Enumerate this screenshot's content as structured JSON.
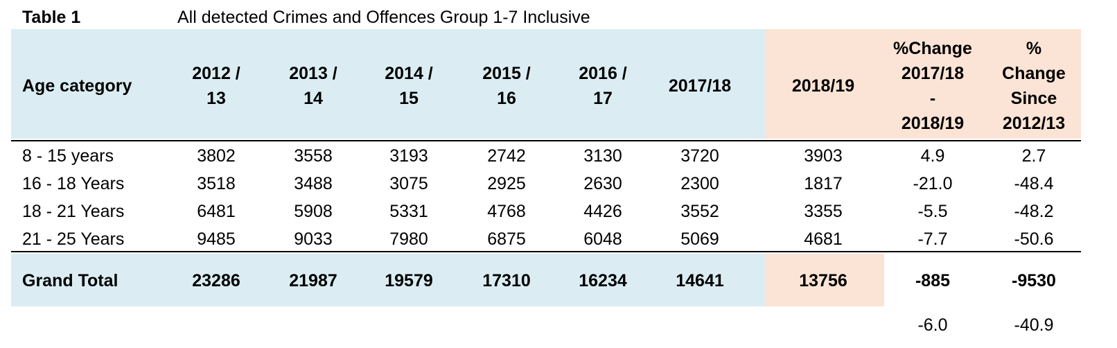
{
  "table": {
    "number": "Table 1",
    "title": "All detected Crimes and Offences Group 1-7 Inclusive",
    "colors": {
      "header_blue": "#dbedf3",
      "highlight_peach": "#fbe4d5"
    },
    "headers": [
      [
        "Age category"
      ],
      [
        "2012 /",
        "13"
      ],
      [
        "2013 /",
        "14"
      ],
      [
        "2014 /",
        "15"
      ],
      [
        "2015 /",
        "16"
      ],
      [
        "2016 /",
        "17"
      ],
      [
        "2017/18"
      ],
      [
        "2018/19"
      ],
      [
        "%Change",
        "2017/18",
        "-",
        "2018/19"
      ],
      [
        "%",
        "Change",
        "Since",
        "2012/13"
      ]
    ],
    "rows": [
      [
        "8 - 15 years",
        "3802",
        "3558",
        "3193",
        "2742",
        "3130",
        "3720",
        "3903",
        "4.9",
        "2.7"
      ],
      [
        "16 - 18 Years",
        "3518",
        "3488",
        "3075",
        "2925",
        "2630",
        "2300",
        "1817",
        "-21.0",
        "-48.4"
      ],
      [
        "18 - 21 Years",
        "6481",
        "5908",
        "5331",
        "4768",
        "4426",
        "3552",
        "3355",
        "-5.5",
        "-48.2"
      ],
      [
        "21 - 25 Years",
        "9485",
        "9033",
        "7980",
        "6875",
        "6048",
        "5069",
        "4681",
        "-7.7",
        "-50.6"
      ]
    ],
    "total": [
      "Grand Total",
      "23286",
      "21987",
      "19579",
      "17310",
      "16234",
      "14641",
      "13756",
      "-885",
      "-9530"
    ],
    "footer": [
      "",
      "",
      "",
      "",
      "",
      "",
      "",
      "",
      "-6.0",
      "-40.9"
    ]
  }
}
